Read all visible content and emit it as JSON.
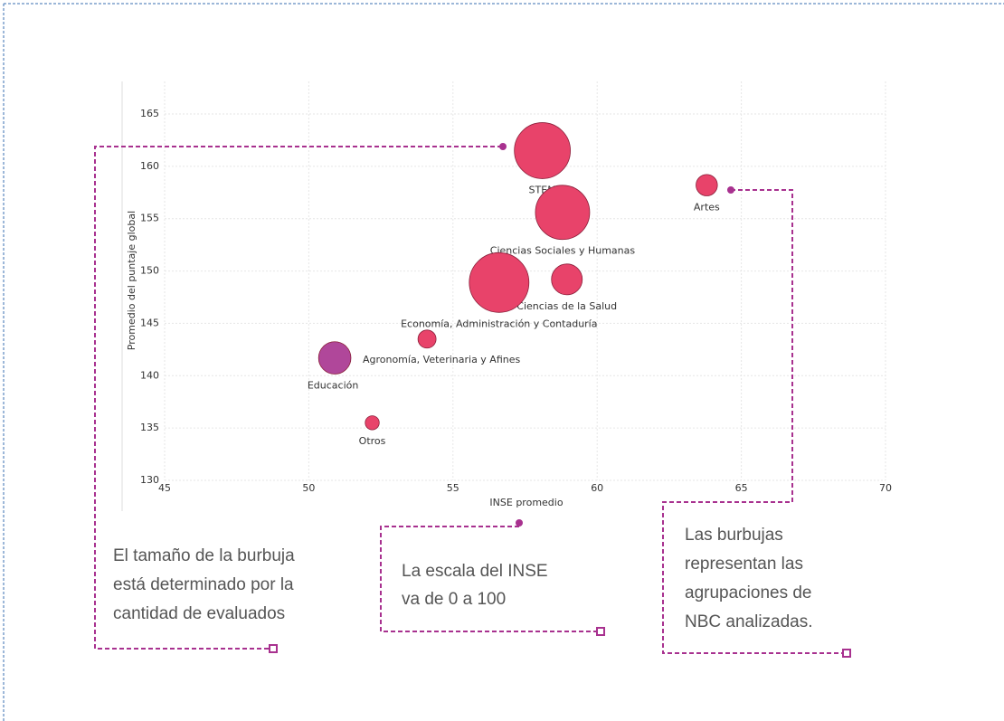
{
  "chart_data": {
    "type": "scatter",
    "x_label": "INSE promedio",
    "y_label": "Promedio del puntaje global",
    "xlim": [
      45,
      70
    ],
    "xticks": [
      45,
      50,
      55,
      60,
      65,
      70
    ],
    "ylim": [
      130,
      165
    ],
    "yticks": [
      130,
      135,
      140,
      145,
      150,
      155,
      160,
      165
    ],
    "grid": true,
    "points": [
      {
        "name": "STEM",
        "x": 58.1,
        "y": 161.5,
        "size": 96,
        "color": "#e8436a"
      },
      {
        "name": "Ciencias Sociales y Humanas",
        "x": 58.8,
        "y": 155.6,
        "size": 90,
        "color": "#e8436a"
      },
      {
        "name": "Artes",
        "x": 63.8,
        "y": 158.2,
        "size": 14,
        "color": "#e8436a"
      },
      {
        "name": "Ciencias de la Salud",
        "x": 58.95,
        "y": 149.2,
        "size": 29,
        "color": "#e8436a"
      },
      {
        "name": "Economía, Administración y Contaduría",
        "x": 56.6,
        "y": 148.9,
        "size": 109,
        "color": "#e8436a"
      },
      {
        "name": "Agronomía, Veterinaria y Afines",
        "x": 54.1,
        "y": 143.5,
        "size": 10,
        "color": "#e8436a"
      },
      {
        "name": "Educación",
        "x": 50.9,
        "y": 141.7,
        "size": 32,
        "color": "#b0479a"
      },
      {
        "name": "Otros",
        "x": 52.2,
        "y": 135.5,
        "size": 6,
        "color": "#e8436a"
      }
    ],
    "annotations": [
      [
        "El tamaño de la burbuja",
        "está determinado por la",
        "cantidad de evaluados"
      ],
      [
        "La escala del INSE",
        "va de 0 a 100"
      ],
      [
        "Las burbujas",
        "representan las",
        "agrupaciones de",
        "NBC analizadas."
      ]
    ]
  }
}
